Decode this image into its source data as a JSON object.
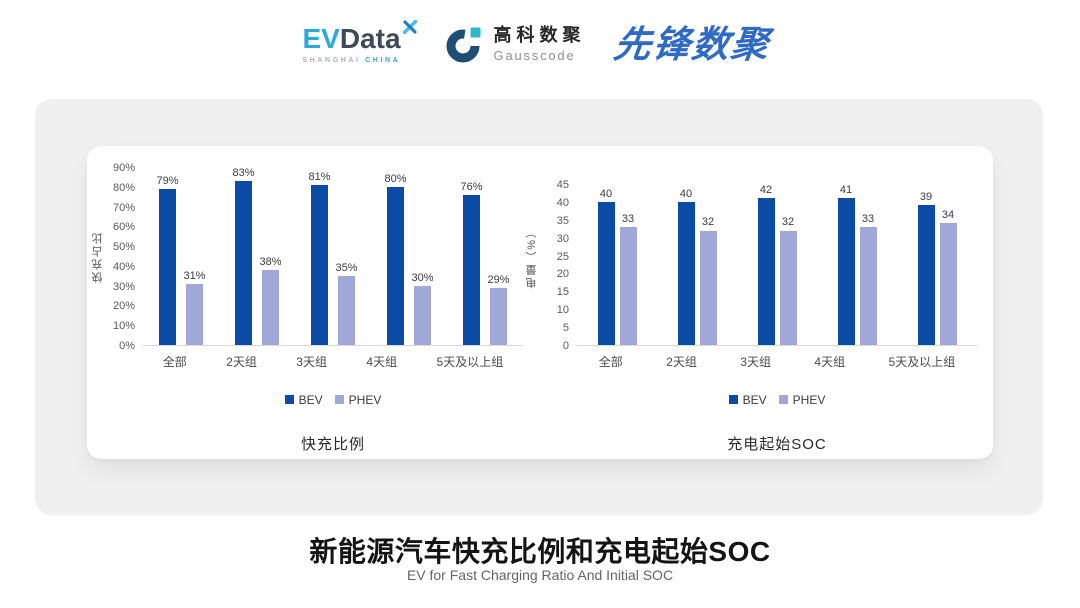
{
  "header": {
    "evdata_logo": {
      "ev": "EV",
      "data": "Data",
      "sub_left": "SHANGHAI",
      "sub_right": "CHINA"
    },
    "gausscode_logo": {
      "cn": "高科数聚",
      "en": "Gausscode"
    },
    "pioneer_logo": "先锋数聚"
  },
  "chart_data": [
    {
      "type": "bar",
      "title": "快充比例",
      "ylabel": "快充占比",
      "ylim": [
        0,
        90
      ],
      "ytick_labels": [
        "90%",
        "80%",
        "70%",
        "60%",
        "50%",
        "40%",
        "30%",
        "20%",
        "10%",
        "0%"
      ],
      "grid": false,
      "legend_position": "bottom",
      "categories": [
        "全部",
        "2天组",
        "3天组",
        "4天组",
        "5天及以上组"
      ],
      "series": [
        {
          "name": "BEV",
          "color": "#0B4AA5",
          "values": [
            79,
            83,
            81,
            80,
            76
          ],
          "value_labels": [
            "79%",
            "83%",
            "81%",
            "80%",
            "76%"
          ]
        },
        {
          "name": "PHEV",
          "color": "#9FA8D6",
          "values": [
            31,
            38,
            35,
            30,
            29
          ],
          "value_labels": [
            "31%",
            "38%",
            "35%",
            "30%",
            "29%"
          ]
        }
      ]
    },
    {
      "type": "bar",
      "title": "充电起始SOC",
      "ylabel": "电量（%）",
      "ylim": [
        0,
        45
      ],
      "ytick_labels": [
        "45",
        "40",
        "35",
        "30",
        "25",
        "20",
        "15",
        "10",
        "5",
        "0"
      ],
      "grid": false,
      "legend_position": "bottom",
      "categories": [
        "全部",
        "2天组",
        "3天组",
        "4天组",
        "5天及以上组"
      ],
      "series": [
        {
          "name": "BEV",
          "color": "#0B4AA5",
          "values": [
            40,
            40,
            42,
            41,
            39
          ],
          "value_labels": [
            "40",
            "40",
            "42",
            "41",
            "39"
          ]
        },
        {
          "name": "PHEV",
          "color": "#9FA8D6",
          "values": [
            33,
            32,
            32,
            33,
            34
          ],
          "value_labels": [
            "33",
            "32",
            "32",
            "33",
            "34"
          ]
        }
      ]
    }
  ],
  "footer": {
    "title": "新能源汽车快充比例和充电起始SOC",
    "subtitle": "EV for Fast Charging Ratio And Initial SOC"
  },
  "colors": {
    "bev": "#0B4AA5",
    "phev": "#9FA8D6",
    "card_bg": "#F0F0F0"
  }
}
